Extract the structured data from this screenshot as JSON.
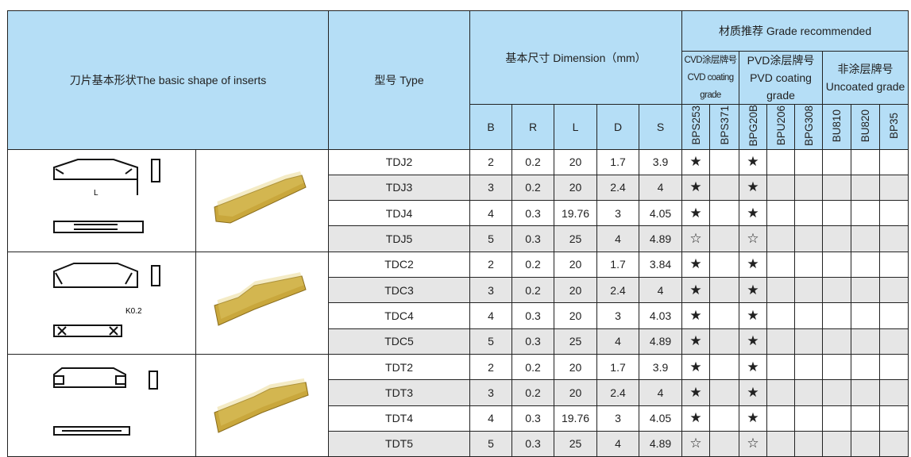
{
  "header": {
    "shape": "刀片基本形状The basic shape of inserts",
    "type": "型号 Type",
    "dimension": "基本尺寸 Dimension（mm）",
    "grade": "材质推荐 Grade recommended",
    "cvd_cn": "CVD涂层牌号",
    "cvd_en": "CVD coating grade",
    "pvd_cn": "PVD涂层牌号",
    "pvd_en": "PVD coating grade",
    "unc_cn": "非涂层牌号",
    "unc_en": "Uncoated grade",
    "dims": [
      "B",
      "R",
      "L",
      "D",
      "S"
    ],
    "grades": [
      "BPS253",
      "BPS371",
      "BPG20B",
      "BPU206",
      "BPG308",
      "BU810",
      "BU820",
      "BP35"
    ]
  },
  "insert_color": "#c9a73c",
  "groups": [
    {
      "rows": [
        {
          "type": "TDJ2",
          "B": "2",
          "R": "0.2",
          "L": "20",
          "D": "1.7",
          "S": "3.9",
          "g": [
            "★",
            "",
            "★",
            "",
            "",
            "",
            "",
            ""
          ]
        },
        {
          "type": "TDJ3",
          "B": "3",
          "R": "0.2",
          "L": "20",
          "D": "2.4",
          "S": "4",
          "g": [
            "★",
            "",
            "★",
            "",
            "",
            "",
            "",
            ""
          ]
        },
        {
          "type": "TDJ4",
          "B": "4",
          "R": "0.3",
          "L": "19.76",
          "D": "3",
          "S": "4.05",
          "g": [
            "★",
            "",
            "★",
            "",
            "",
            "",
            "",
            ""
          ]
        },
        {
          "type": "TDJ5",
          "B": "5",
          "R": "0.3",
          "L": "25",
          "D": "4",
          "S": "4.89",
          "g": [
            "☆",
            "",
            "☆",
            "",
            "",
            "",
            "",
            ""
          ]
        }
      ]
    },
    {
      "rows": [
        {
          "type": "TDC2",
          "B": "2",
          "R": "0.2",
          "L": "20",
          "D": "1.7",
          "S": "3.84",
          "g": [
            "★",
            "",
            "★",
            "",
            "",
            "",
            "",
            ""
          ]
        },
        {
          "type": "TDC3",
          "B": "3",
          "R": "0.2",
          "L": "20",
          "D": "2.4",
          "S": "4",
          "g": [
            "★",
            "",
            "★",
            "",
            "",
            "",
            "",
            ""
          ]
        },
        {
          "type": "TDC4",
          "B": "4",
          "R": "0.3",
          "L": "20",
          "D": "3",
          "S": "4.03",
          "g": [
            "★",
            "",
            "★",
            "",
            "",
            "",
            "",
            ""
          ]
        },
        {
          "type": "TDC5",
          "B": "5",
          "R": "0.3",
          "L": "25",
          "D": "4",
          "S": "4.89",
          "g": [
            "★",
            "",
            "★",
            "",
            "",
            "",
            "",
            ""
          ]
        }
      ]
    },
    {
      "rows": [
        {
          "type": "TDT2",
          "B": "2",
          "R": "0.2",
          "L": "20",
          "D": "1.7",
          "S": "3.9",
          "g": [
            "★",
            "",
            "★",
            "",
            "",
            "",
            "",
            ""
          ]
        },
        {
          "type": "TDT3",
          "B": "3",
          "R": "0.2",
          "L": "20",
          "D": "2.4",
          "S": "4",
          "g": [
            "★",
            "",
            "★",
            "",
            "",
            "",
            "",
            ""
          ]
        },
        {
          "type": "TDT4",
          "B": "4",
          "R": "0.3",
          "L": "19.76",
          "D": "3",
          "S": "4.05",
          "g": [
            "★",
            "",
            "★",
            "",
            "",
            "",
            "",
            ""
          ]
        },
        {
          "type": "TDT5",
          "B": "5",
          "R": "0.3",
          "L": "25",
          "D": "4",
          "S": "4.89",
          "g": [
            "☆",
            "",
            "☆",
            "",
            "",
            "",
            "",
            ""
          ]
        }
      ]
    }
  ]
}
